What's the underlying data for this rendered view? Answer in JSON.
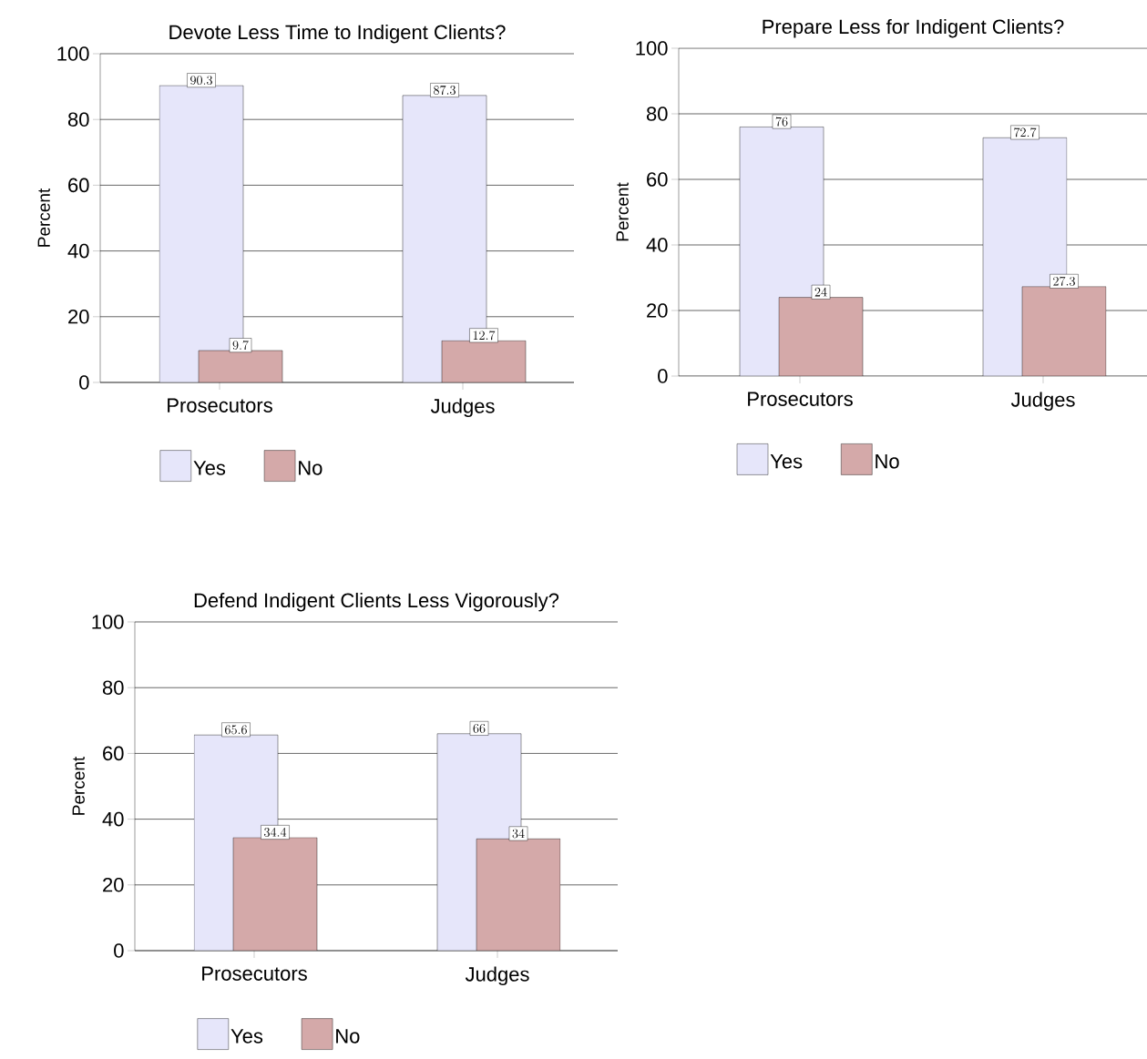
{
  "chart_data": [
    {
      "type": "bar",
      "title": "Devote Less Time to Indigent Clients?",
      "ylabel": "Percent",
      "categories": [
        "Prosecutors",
        "Judges"
      ],
      "series": [
        {
          "name": "Yes",
          "color": "#e6e6fa",
          "values": [
            90.3,
            87.3
          ]
        },
        {
          "name": "No",
          "color": "#d4a9a9",
          "values": [
            9.7,
            12.7
          ]
        }
      ],
      "ylim": [
        0,
        100
      ],
      "yticks": [
        0,
        20,
        40,
        60,
        80,
        100
      ],
      "grid": "y",
      "legend": "bottom",
      "data_labels": true
    },
    {
      "type": "bar",
      "title": "Prepare Less for Indigent Clients?",
      "ylabel": "Percent",
      "categories": [
        "Prosecutors",
        "Judges"
      ],
      "series": [
        {
          "name": "Yes",
          "color": "#e6e6fa",
          "values": [
            76,
            72.7
          ]
        },
        {
          "name": "No",
          "color": "#d4a9a9",
          "values": [
            24,
            27.3
          ]
        }
      ],
      "ylim": [
        0,
        100
      ],
      "yticks": [
        0,
        20,
        40,
        60,
        80,
        100
      ],
      "grid": "y",
      "legend": "bottom",
      "data_labels": true
    },
    {
      "type": "bar",
      "title": "Defend Indigent Clients Less Vigorously?",
      "ylabel": "Percent",
      "categories": [
        "Prosecutors",
        "Judges"
      ],
      "series": [
        {
          "name": "Yes",
          "color": "#e6e6fa",
          "values": [
            65.6,
            66
          ]
        },
        {
          "name": "No",
          "color": "#d4a9a9",
          "values": [
            34.4,
            34
          ]
        }
      ],
      "ylim": [
        0,
        100
      ],
      "yticks": [
        0,
        20,
        40,
        60,
        80,
        100
      ],
      "grid": "y",
      "legend": "bottom",
      "data_labels": true
    }
  ]
}
